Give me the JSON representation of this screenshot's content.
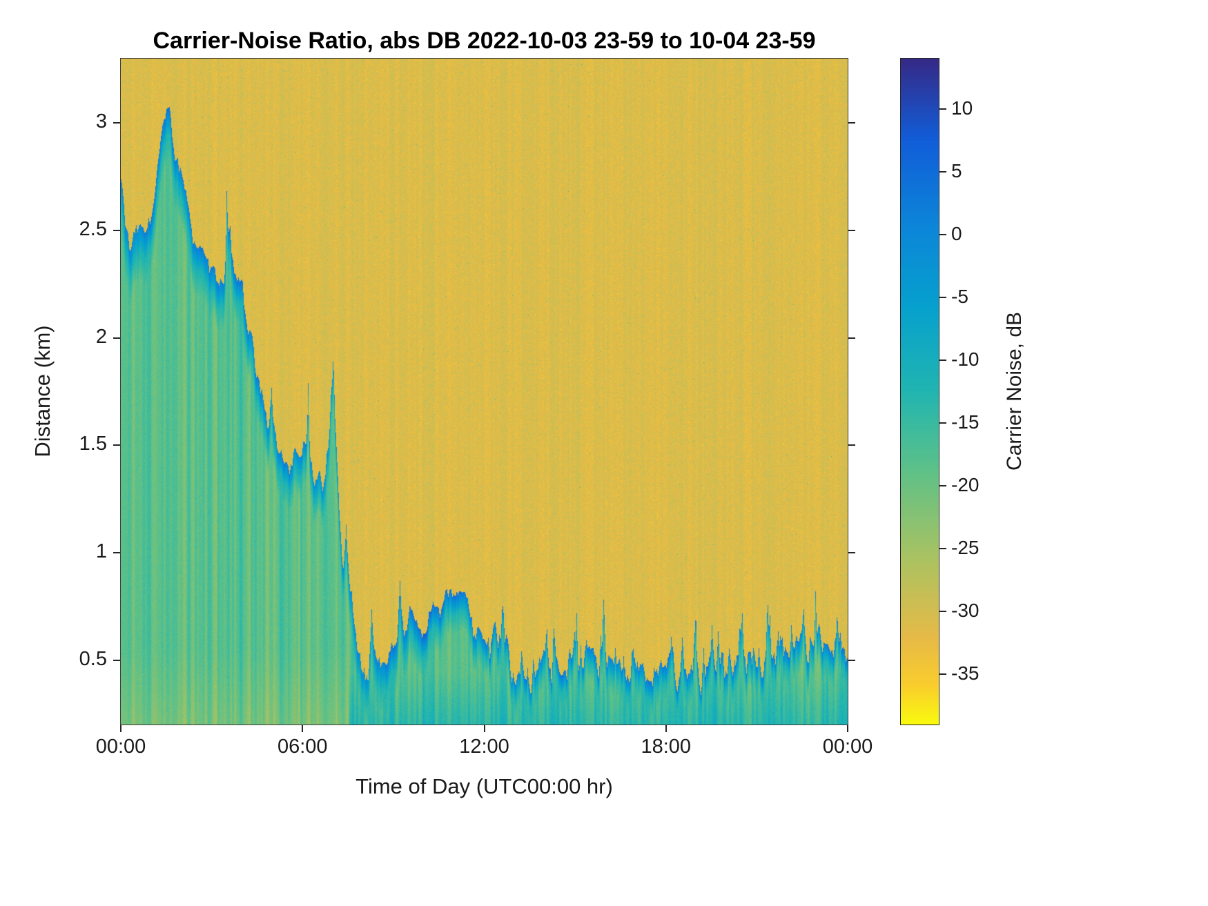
{
  "page": {
    "background": "#ffffff"
  },
  "chart_data": {
    "type": "heatmap",
    "title": "Carrier-Noise Ratio, abs DB 2022-10-03 23-59 to 10-04 23-59",
    "xlabel": "Time of Day (UTC00:00 hr)",
    "ylabel": "Distance (km)",
    "x_tick_labels": [
      "00:00",
      "06:00",
      "12:00",
      "18:00",
      "00:00"
    ],
    "x_tick_hours": [
      0,
      6,
      12,
      18,
      24
    ],
    "x_range_hours": [
      0,
      24
    ],
    "y_ticks": [
      0.5,
      1,
      1.5,
      2,
      2.5,
      3
    ],
    "y_range_km": [
      0.2,
      3.3
    ],
    "grid": false,
    "legend": "none",
    "colorbar": {
      "label": "Carrier Noise, dB",
      "ticks": [
        10,
        5,
        0,
        -5,
        -10,
        -15,
        -20,
        -25,
        -30,
        -35
      ],
      "value_range": [
        -39,
        14
      ],
      "position": "right"
    },
    "background_db": -31,
    "interior_db": -18,
    "edge_transition_db": -12,
    "edge_db_schedule": [
      [
        0,
        1.5
      ],
      [
        2,
        4
      ],
      [
        4,
        3
      ],
      [
        7,
        0.8
      ],
      [
        9,
        3
      ],
      [
        10,
        6
      ],
      [
        11.8,
        3
      ],
      [
        13,
        2.5
      ],
      [
        24,
        2.5
      ]
    ],
    "edge_width_km_schedule": [
      [
        0,
        0.13
      ],
      [
        7,
        0.09
      ],
      [
        9,
        0.12
      ],
      [
        12,
        0.08
      ],
      [
        24,
        0.08
      ]
    ],
    "boundary_km": [
      [
        0,
        2.7
      ],
      [
        0.3,
        2.45
      ],
      [
        0.7,
        2.5
      ],
      [
        1,
        2.55
      ],
      [
        1.3,
        2.9
      ],
      [
        1.6,
        3.1
      ],
      [
        1.9,
        2.75
      ],
      [
        2.2,
        2.6
      ],
      [
        2.5,
        2.45
      ],
      [
        2.8,
        2.35
      ],
      [
        3.1,
        2.3
      ],
      [
        3.4,
        2.25
      ],
      [
        3.6,
        2.5
      ],
      [
        3.8,
        2.3
      ],
      [
        4,
        2.2
      ],
      [
        4.3,
        1.95
      ],
      [
        4.6,
        1.75
      ],
      [
        4.9,
        1.6
      ],
      [
        5.2,
        1.5
      ],
      [
        5.5,
        1.42
      ],
      [
        5.8,
        1.45
      ],
      [
        6.1,
        1.5
      ],
      [
        6.4,
        1.38
      ],
      [
        6.7,
        1.32
      ],
      [
        6.85,
        1.5
      ],
      [
        7,
        1.85
      ],
      [
        7.15,
        1.3
      ],
      [
        7.3,
        0.95
      ],
      [
        7.5,
        0.9
      ],
      [
        7.8,
        0.55
      ],
      [
        8,
        0.42
      ],
      [
        8.3,
        0.45
      ],
      [
        8.6,
        0.5
      ],
      [
        9,
        0.55
      ],
      [
        9.3,
        0.65
      ],
      [
        9.6,
        0.72
      ],
      [
        10,
        0.65
      ],
      [
        10.4,
        0.72
      ],
      [
        10.8,
        0.8
      ],
      [
        11.1,
        0.82
      ],
      [
        11.4,
        0.75
      ],
      [
        11.8,
        0.6
      ],
      [
        12.2,
        0.55
      ],
      [
        12.3,
        0.72
      ],
      [
        12.6,
        0.6
      ],
      [
        13,
        0.45
      ],
      [
        13.5,
        0.4
      ],
      [
        14,
        0.42
      ],
      [
        14.5,
        0.5
      ],
      [
        15,
        0.48
      ],
      [
        15.5,
        0.52
      ],
      [
        16,
        0.5
      ],
      [
        16.5,
        0.45
      ],
      [
        17,
        0.48
      ],
      [
        17.5,
        0.45
      ],
      [
        18,
        0.42
      ],
      [
        18.5,
        0.4
      ],
      [
        19,
        0.42
      ],
      [
        19.5,
        0.4
      ],
      [
        20,
        0.45
      ],
      [
        20.5,
        0.5
      ],
      [
        21,
        0.52
      ],
      [
        21.5,
        0.5
      ],
      [
        22,
        0.52
      ],
      [
        22.5,
        0.55
      ],
      [
        23,
        0.55
      ],
      [
        23.5,
        0.52
      ],
      [
        24,
        0.55
      ]
    ],
    "colormap": {
      "name": "parula-reversed",
      "stops": [
        [
          0.0,
          53,
          42,
          135
        ],
        [
          0.12,
          17,
          93,
          216
        ],
        [
          0.25,
          12,
          133,
          216
        ],
        [
          0.37,
          6,
          160,
          206
        ],
        [
          0.5,
          33,
          181,
          176
        ],
        [
          0.62,
          95,
          193,
          135
        ],
        [
          0.75,
          170,
          194,
          97
        ],
        [
          0.87,
          231,
          186,
          71
        ],
        [
          0.94,
          249,
          205,
          45
        ],
        [
          1.0,
          249,
          251,
          14
        ]
      ]
    }
  }
}
